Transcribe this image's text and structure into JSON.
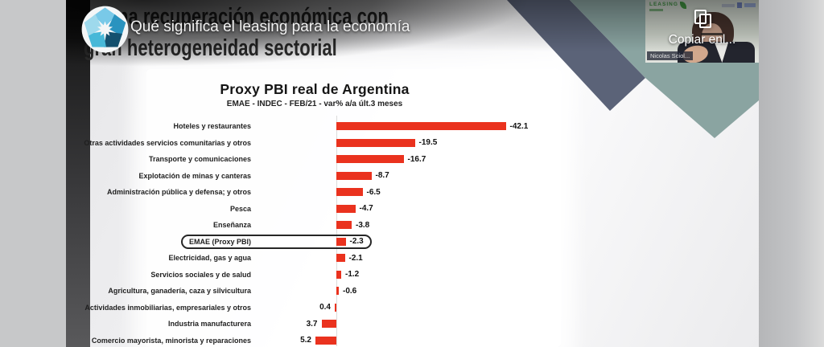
{
  "player": {
    "caption": "Qué significa el leasing para la economía",
    "copy_button_label": "Copiar enl...",
    "avatar_icon": "pinwheel-star-logo"
  },
  "slide": {
    "title_line1_visible": "na recuperación económica con",
    "title_line2": "gran heterogeneidad sectorial"
  },
  "webcam": {
    "logo_text": "LEASING",
    "name_label": "Nicolas Sciol..."
  },
  "colors": {
    "bar_red": "#ea321e",
    "ribbon_navy": "#5b6378",
    "ribbon_teal": "#8aa4a1"
  },
  "chart_data": {
    "type": "bar",
    "orientation": "horizontal",
    "value_axis_reversed": true,
    "title": "Proxy PBI real de Argentina",
    "subtitle": "EMAE - INDEC - FEB/21 - var% a/a últ.3 meses",
    "bar_color": "#ea321e",
    "highlighted_category": "EMAE (Proxy PBI)",
    "categories": [
      "Hoteles y restaurantes",
      "Otras actividades servicios comunitarias y otros",
      "Transporte y comunicaciones",
      "Explotación de minas y canteras",
      "Administración pública y defensa; y otros",
      "Pesca",
      "Enseñanza",
      "EMAE (Proxy PBI)",
      "Electricidad, gas y agua",
      "Servicios sociales y de salud",
      "Agricultura, ganadería, caza y silvicultura",
      "Actividades inmobiliarias, empresariales y otros",
      "Industria manufacturera",
      "Comercio mayorista, minorista y reparaciones"
    ],
    "values": [
      -42.1,
      -19.5,
      -16.7,
      -8.7,
      -6.5,
      -4.7,
      -3.8,
      -2.3,
      -2.1,
      -1.2,
      -0.6,
      0.4,
      3.7,
      5.2
    ],
    "value_labels": [
      "-42.1",
      "-19.5",
      "-16.7",
      "-8.7",
      "-6.5",
      "-4.7",
      "-3.8",
      "-2.3",
      "-2.1",
      "-1.2",
      "-0.6",
      "0.4",
      "3.7",
      "5.2"
    ]
  }
}
